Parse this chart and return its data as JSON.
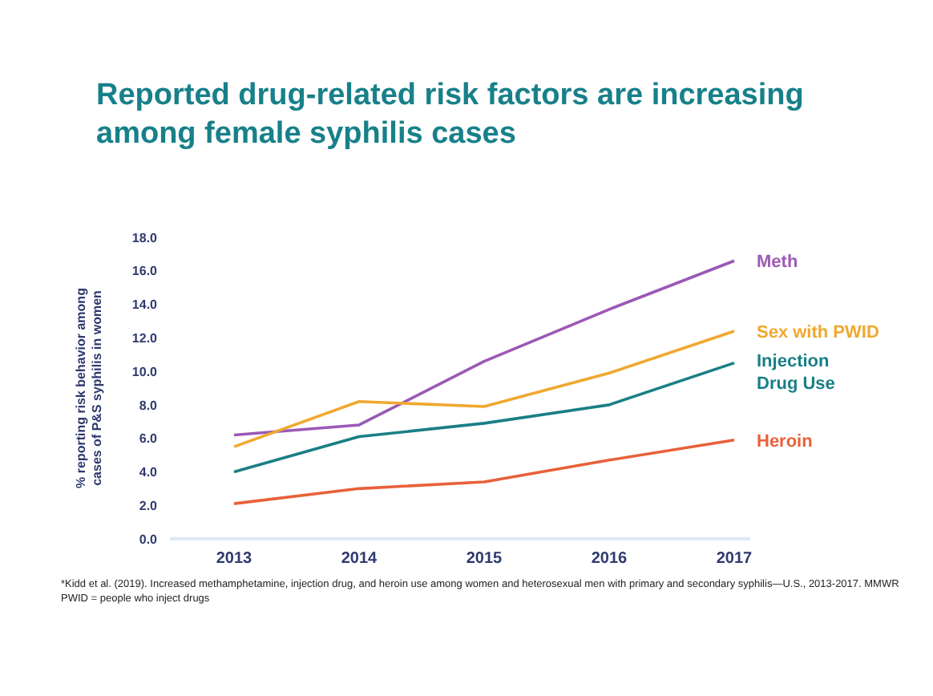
{
  "chart_data": {
    "type": "line",
    "title": "Reported drug-related risk factors are increasing among female syphilis cases",
    "ylabel": "% reporting risk behavior among cases of P&S syphilis in women",
    "categories": [
      "2013",
      "2014",
      "2015",
      "2016",
      "2017"
    ],
    "series": [
      {
        "name": "Meth",
        "color": "#9b59b6",
        "values": [
          6.2,
          6.8,
          10.6,
          13.7,
          16.6
        ]
      },
      {
        "name": "Sex with PWID",
        "color": "#f0a830",
        "values": [
          5.5,
          8.2,
          7.9,
          9.9,
          12.4
        ]
      },
      {
        "name": "Injection Drug Use",
        "color": "#1a7f86",
        "values": [
          4.0,
          6.1,
          6.9,
          8.0,
          10.5
        ]
      },
      {
        "name": "Heroin",
        "color": "#e8613a",
        "values": [
          2.1,
          3.0,
          3.4,
          4.7,
          5.9
        ]
      }
    ],
    "ylim": [
      0,
      18
    ],
    "yticks": [
      {
        "value": 0,
        "label": "0.0"
      },
      {
        "value": 2,
        "label": "2.0"
      },
      {
        "value": 4,
        "label": "4.0"
      },
      {
        "value": 6,
        "label": "6.0"
      },
      {
        "value": 8,
        "label": "8.0"
      },
      {
        "value": 10,
        "label": "10.0"
      },
      {
        "value": 12,
        "label": "12.0"
      },
      {
        "value": 14,
        "label": "14.0"
      },
      {
        "value": 16,
        "label": "16.0"
      },
      {
        "value": 18,
        "label": "18.0"
      }
    ],
    "grid": false,
    "legend": false,
    "marker": "none",
    "line_style": "solid",
    "annotations": [
      "*Kidd et al. (2019). Increased methamphetamine, injection drug, and heroin use among women and heterosexual men with primary and secondary syphilis—U.S., 2013-2017. MMWR",
      "PWID = people who inject drugs"
    ]
  }
}
